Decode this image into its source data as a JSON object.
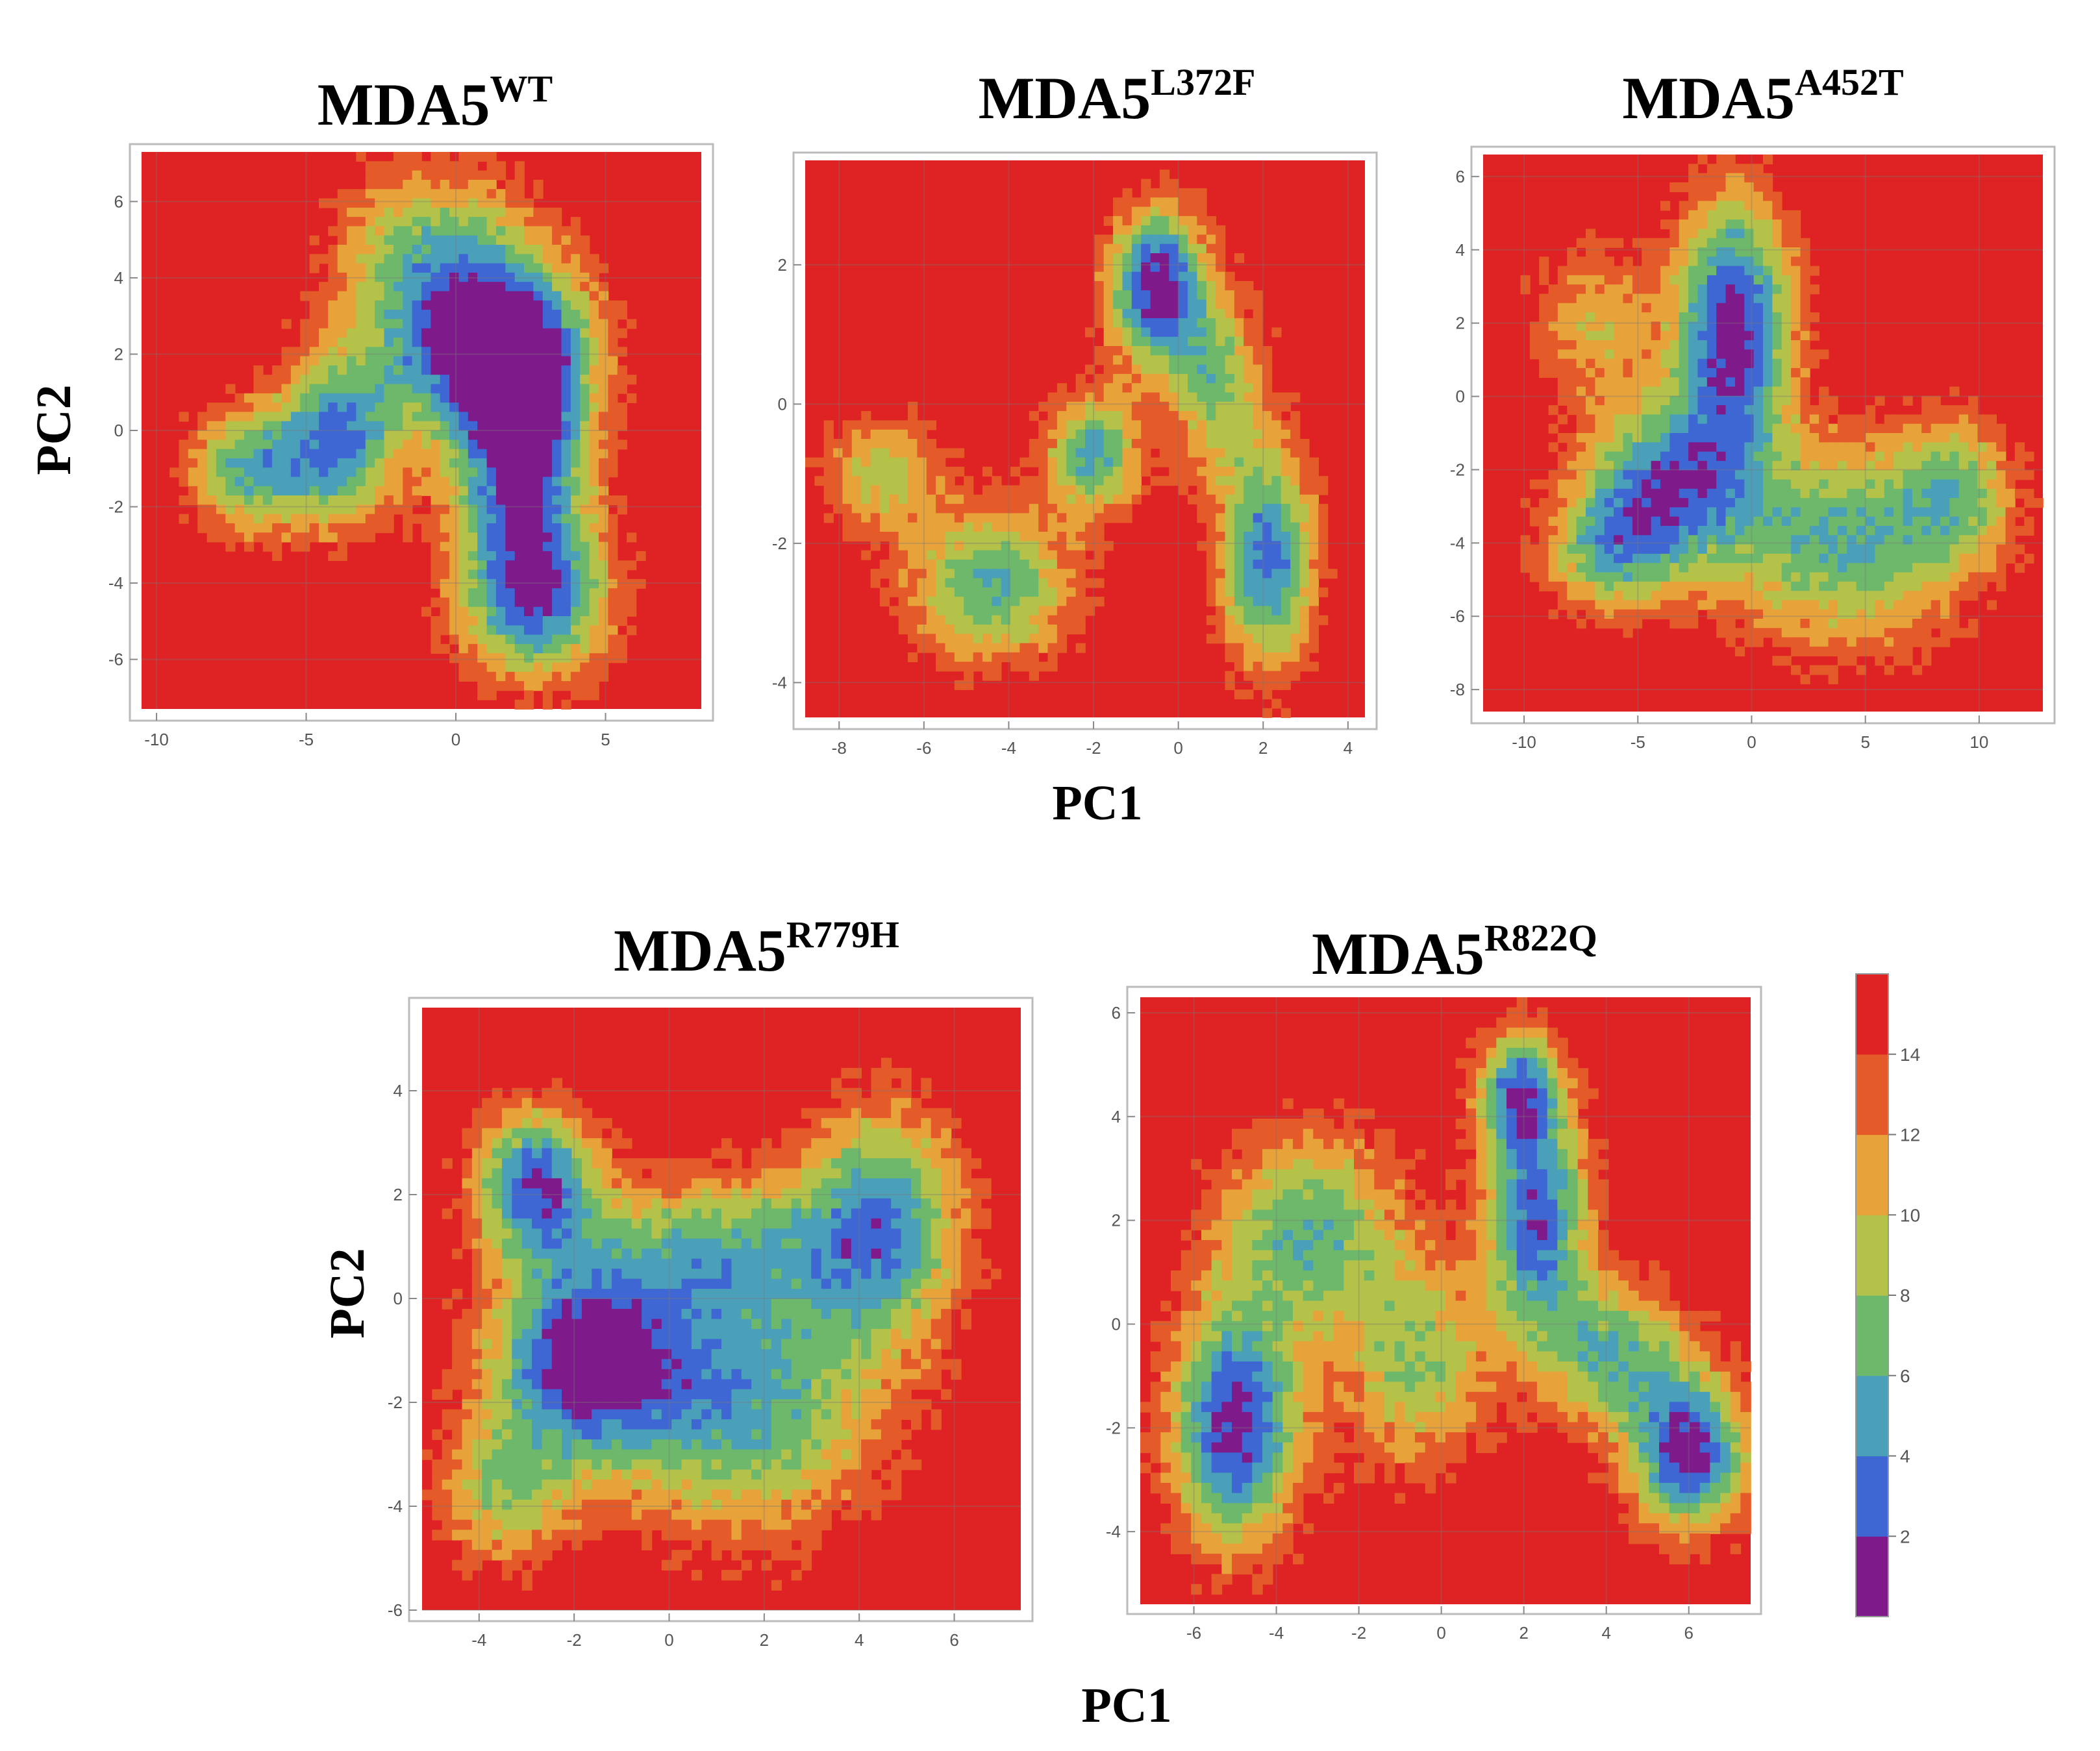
{
  "colorbar": {
    "ticks": [
      "14",
      "12",
      "10",
      "8",
      "6",
      "4",
      "2"
    ],
    "levels": [
      {
        "value_range": [
          0,
          2
        ],
        "color": "#7f1a8a"
      },
      {
        "value_range": [
          2,
          4
        ],
        "color": "#3f67d4"
      },
      {
        "value_range": [
          4,
          6
        ],
        "color": "#4aa0b9"
      },
      {
        "value_range": [
          6,
          8
        ],
        "color": "#6db86a"
      },
      {
        "value_range": [
          8,
          10
        ],
        "color": "#b4c24a"
      },
      {
        "value_range": [
          10,
          12
        ],
        "color": "#e8a23a"
      },
      {
        "value_range": [
          12,
          14
        ],
        "color": "#e45a28"
      },
      {
        "value_range": [
          14,
          16
        ],
        "color": "#df2224"
      }
    ]
  },
  "chart_data": [
    {
      "type": "heatmap",
      "title_main": "MDA5",
      "title_sup": "WT",
      "ylabel": "PC2",
      "xlabel": "",
      "xlim": [
        -10.5,
        8.2
      ],
      "ylim": [
        -7.3,
        7.3
      ],
      "xticks": [
        -10,
        -5,
        0,
        5
      ],
      "yticks": [
        -6,
        -4,
        -2,
        0,
        2,
        4,
        6
      ],
      "basins": [
        {
          "center": [
            2.2,
            -0.6
          ],
          "sx": 1.6,
          "sy": 2.8,
          "depth": 15.5
        },
        {
          "center": [
            0.8,
            2.2
          ],
          "sx": 2.4,
          "sy": 1.6,
          "depth": 13.5
        },
        {
          "center": [
            -3.8,
            -0.2
          ],
          "sx": 1.4,
          "sy": 1.6,
          "depth": 11.5
        },
        {
          "center": [
            -6.8,
            -1.0
          ],
          "sx": 1.5,
          "sy": 1.2,
          "depth": 10.5
        },
        {
          "center": [
            2.8,
            -4.5
          ],
          "sx": 1.8,
          "sy": 1.4,
          "depth": 10.0
        },
        {
          "center": [
            -1.0,
            4.8
          ],
          "sx": 2.2,
          "sy": 1.6,
          "depth": 8.0
        }
      ]
    },
    {
      "type": "heatmap",
      "title_main": "MDA5",
      "title_sup": "L372F",
      "ylabel": "",
      "xlabel": "PC1",
      "xlim": [
        -8.8,
        4.4
      ],
      "ylim": [
        -4.5,
        3.5
      ],
      "xticks": [
        -8,
        -6,
        -4,
        -2,
        0,
        2,
        4
      ],
      "yticks": [
        -4,
        -2,
        0,
        2
      ],
      "basins": [
        {
          "center": [
            -0.5,
            1.7
          ],
          "sx": 0.8,
          "sy": 0.8,
          "depth": 16.0
        },
        {
          "center": [
            2.1,
            -2.2
          ],
          "sx": 0.8,
          "sy": 1.1,
          "depth": 13.5
        },
        {
          "center": [
            -2.0,
            -0.7
          ],
          "sx": 0.8,
          "sy": 0.6,
          "depth": 11.0
        },
        {
          "center": [
            -4.4,
            -2.6
          ],
          "sx": 1.4,
          "sy": 0.8,
          "depth": 10.5
        },
        {
          "center": [
            -7.0,
            -1.0
          ],
          "sx": 1.0,
          "sy": 0.6,
          "depth": 7.5
        },
        {
          "center": [
            0.9,
            0.3
          ],
          "sx": 0.8,
          "sy": 0.9,
          "depth": 8.5
        }
      ]
    },
    {
      "type": "heatmap",
      "title_main": "MDA5",
      "title_sup": "A452T",
      "ylabel": "",
      "xlabel": "",
      "xlim": [
        -11.8,
        12.8
      ],
      "ylim": [
        -8.6,
        6.6
      ],
      "xticks": [
        -10,
        -5,
        0,
        5,
        10
      ],
      "yticks": [
        -8,
        -6,
        -4,
        -2,
        0,
        2,
        4,
        6
      ],
      "basins": [
        {
          "center": [
            -0.8,
            1.8
          ],
          "sx": 1.8,
          "sy": 2.6,
          "depth": 16.0
        },
        {
          "center": [
            -4.0,
            -2.5
          ],
          "sx": 2.4,
          "sy": 1.6,
          "depth": 12.5
        },
        {
          "center": [
            4.0,
            -4.0
          ],
          "sx": 3.8,
          "sy": 2.0,
          "depth": 10.5
        },
        {
          "center": [
            -6.5,
            -4.3
          ],
          "sx": 2.0,
          "sy": 1.2,
          "depth": 8.0
        },
        {
          "center": [
            9.0,
            -2.5
          ],
          "sx": 1.8,
          "sy": 1.4,
          "depth": 7.5
        },
        {
          "center": [
            -7.0,
            2.0
          ],
          "sx": 2.0,
          "sy": 1.6,
          "depth": 6.0
        }
      ]
    },
    {
      "type": "heatmap",
      "title_main": "MDA5",
      "title_sup": "R779H",
      "ylabel": "PC2",
      "xlabel": "",
      "xlim": [
        -5.2,
        7.4
      ],
      "ylim": [
        -6.0,
        5.6
      ],
      "xticks": [
        -4,
        -2,
        0,
        2,
        4,
        6
      ],
      "yticks": [
        -6,
        -4,
        -2,
        0,
        2,
        4
      ],
      "basins": [
        {
          "center": [
            -1.8,
            -1.2
          ],
          "sx": 1.4,
          "sy": 1.3,
          "depth": 15.5
        },
        {
          "center": [
            -2.8,
            2.2
          ],
          "sx": 0.9,
          "sy": 1.0,
          "depth": 14.0
        },
        {
          "center": [
            1.6,
            -2.0
          ],
          "sx": 2.0,
          "sy": 1.8,
          "depth": 11.0
        },
        {
          "center": [
            4.5,
            1.5
          ],
          "sx": 1.2,
          "sy": 1.6,
          "depth": 11.5
        },
        {
          "center": [
            1.0,
            1.0
          ],
          "sx": 2.0,
          "sy": 1.0,
          "depth": 8.0
        },
        {
          "center": [
            -3.5,
            -3.8
          ],
          "sx": 1.0,
          "sy": 1.0,
          "depth": 7.5
        }
      ]
    },
    {
      "type": "heatmap",
      "title_main": "MDA5",
      "title_sup": "R822Q",
      "ylabel": "",
      "xlabel": "PC1",
      "xlim": [
        -7.3,
        7.5
      ],
      "ylim": [
        -5.4,
        6.3
      ],
      "xticks": [
        -6,
        -4,
        -2,
        0,
        2,
        4,
        6
      ],
      "yticks": [
        -4,
        -2,
        0,
        2,
        4,
        6
      ],
      "basins": [
        {
          "center": [
            -5.0,
            -2.0
          ],
          "sx": 1.1,
          "sy": 1.6,
          "depth": 15.5
        },
        {
          "center": [
            6.0,
            -2.5
          ],
          "sx": 1.0,
          "sy": 1.0,
          "depth": 15.5
        },
        {
          "center": [
            2.3,
            2.0
          ],
          "sx": 0.9,
          "sy": 1.5,
          "depth": 14.0
        },
        {
          "center": [
            1.9,
            4.5
          ],
          "sx": 0.7,
          "sy": 0.8,
          "depth": 12.5
        },
        {
          "center": [
            4.2,
            -0.6
          ],
          "sx": 1.3,
          "sy": 1.0,
          "depth": 10.0
        },
        {
          "center": [
            -3.2,
            1.8
          ],
          "sx": 1.6,
          "sy": 1.4,
          "depth": 10.0
        },
        {
          "center": [
            -0.6,
            -0.8
          ],
          "sx": 1.2,
          "sy": 1.4,
          "depth": 8.5
        }
      ]
    }
  ]
}
